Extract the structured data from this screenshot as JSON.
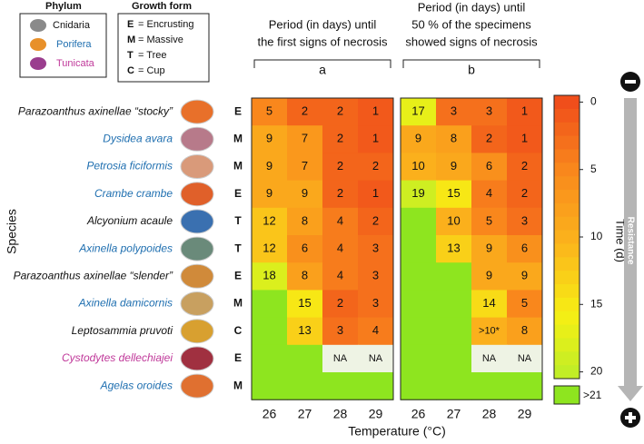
{
  "chart_data": {
    "type": "heatmap",
    "ylabel": "Species",
    "xlabel": "Temperature (°C)",
    "categories": [
      26,
      27,
      28,
      29
    ],
    "phylum_title": "Phylum",
    "phyla": [
      {
        "name": "Cnidaria",
        "color": "#111111",
        "icon": "#8a8a8a"
      },
      {
        "name": "Porifera",
        "color": "#1f6fb0",
        "icon": "#e8902a"
      },
      {
        "name": "Tunicata",
        "color": "#c0399a",
        "icon": "#9a3d8e"
      }
    ],
    "growth_title": "Growth form",
    "growth_forms": [
      {
        "code": "E",
        "text": "= Encrusting"
      },
      {
        "code": "M",
        "text": "= Massive"
      },
      {
        "code": "T",
        "text": "= Tree"
      },
      {
        "code": "C",
        "text": "= Cup"
      }
    ],
    "species": [
      {
        "name": "Parazoanthus axinellae “stocky”",
        "phylum": 0,
        "form": "E"
      },
      {
        "name": "Dysidea avara",
        "phylum": 1,
        "form": "M"
      },
      {
        "name": "Petrosia ficiformis",
        "phylum": 1,
        "form": "M"
      },
      {
        "name": "Crambe crambe",
        "phylum": 1,
        "form": "E"
      },
      {
        "name": "Alcyonium acaule",
        "phylum": 0,
        "form": "T"
      },
      {
        "name": "Axinella polypoides",
        "phylum": 1,
        "form": "T"
      },
      {
        "name": "Parazoanthus axinellae “slender”",
        "phylum": 0,
        "form": "E"
      },
      {
        "name": "Axinella damicornis",
        "phylum": 1,
        "form": "M"
      },
      {
        "name": "Leptosammia pruvoti",
        "phylum": 0,
        "form": "C"
      },
      {
        "name": "Cystodytes dellechiajei",
        "phylum": 2,
        "form": "E"
      },
      {
        "name": "Agelas oroides",
        "phylum": 1,
        "form": "M"
      }
    ],
    "panels": [
      {
        "label": "a",
        "title": [
          "Period (in days) until",
          "the first signs of necrosis"
        ],
        "values": [
          [
            5,
            2,
            2,
            1
          ],
          [
            9,
            7,
            2,
            1
          ],
          [
            9,
            7,
            2,
            2
          ],
          [
            9,
            9,
            2,
            1
          ],
          [
            12,
            8,
            4,
            2
          ],
          [
            12,
            6,
            4,
            3
          ],
          [
            18,
            8,
            4,
            3
          ],
          [
            null,
            15,
            2,
            3
          ],
          [
            null,
            13,
            3,
            4
          ],
          [
            null,
            null,
            null,
            null
          ],
          [
            null,
            null,
            null,
            null
          ]
        ],
        "value_labels": [
          [
            null,
            null,
            null,
            null
          ],
          [
            null,
            null,
            null,
            null
          ],
          [
            null,
            null,
            null,
            null
          ],
          [
            null,
            null,
            null,
            null
          ],
          [
            null,
            null,
            null,
            null
          ],
          [
            null,
            null,
            null,
            null
          ],
          [
            null,
            null,
            null,
            null
          ],
          [
            null,
            null,
            null,
            null
          ],
          [
            null,
            null,
            null,
            null
          ],
          [
            null,
            null,
            "NA",
            "NA"
          ],
          [
            null,
            null,
            null,
            null
          ]
        ]
      },
      {
        "label": "b",
        "title": [
          "Period (in days) until",
          "50 % of the specimens",
          "showed signs of necrosis"
        ],
        "values": [
          [
            17,
            3,
            3,
            1
          ],
          [
            9,
            8,
            2,
            1
          ],
          [
            10,
            9,
            6,
            2
          ],
          [
            19,
            15,
            4,
            2
          ],
          [
            null,
            10,
            5,
            3
          ],
          [
            null,
            13,
            9,
            6
          ],
          [
            null,
            null,
            9,
            9
          ],
          [
            null,
            null,
            14,
            5
          ],
          [
            null,
            null,
            10,
            8
          ],
          [
            null,
            null,
            null,
            null
          ],
          [
            null,
            null,
            null,
            null
          ]
        ],
        "value_labels": [
          [
            null,
            null,
            null,
            null
          ],
          [
            null,
            null,
            null,
            null
          ],
          [
            null,
            null,
            null,
            null
          ],
          [
            null,
            null,
            null,
            null
          ],
          [
            null,
            null,
            null,
            null
          ],
          [
            null,
            null,
            null,
            null
          ],
          [
            null,
            null,
            null,
            null
          ],
          [
            null,
            null,
            null,
            null
          ],
          [
            null,
            null,
            ">10*",
            null
          ],
          [
            null,
            null,
            "NA",
            "NA"
          ],
          [
            null,
            null,
            null,
            null
          ]
        ]
      }
    ],
    "colorbar_label": "Time (d)",
    "clim": [
      0,
      21
    ],
    "cticks": [
      0,
      5,
      10,
      15,
      20
    ],
    "colors": [
      "#f04e1b",
      "#f98a1c",
      "#fbb41c",
      "#f6ef14",
      "#b6ee2a"
    ],
    "over_label": ">21",
    "over_color": "#8ee51f",
    "na_color": "#eef3e4",
    "arrow_label": "Resistance"
  }
}
